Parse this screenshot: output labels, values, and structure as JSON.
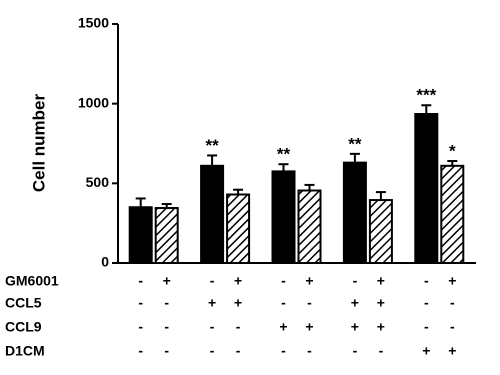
{
  "chart_data": {
    "type": "bar",
    "y_label": "Cell number",
    "ylim": [
      0,
      1500
    ],
    "yticks": [
      0,
      500,
      1000,
      1500
    ],
    "series": [
      {
        "color": "#000000",
        "hatch": false,
        "values": [
          350,
          610,
          575,
          630,
          935
        ],
        "errors": [
          55,
          65,
          45,
          55,
          55
        ],
        "annotations": [
          null,
          "**",
          "**",
          "**",
          "***"
        ]
      },
      {
        "color": "#000000",
        "hatch": true,
        "values": [
          345,
          430,
          455,
          395,
          610
        ],
        "errors": [
          25,
          30,
          35,
          50,
          30
        ],
        "annotations": [
          null,
          null,
          null,
          null,
          "*"
        ]
      }
    ],
    "conditions": [
      {
        "label": "GM6001",
        "signs": [
          "-",
          "+",
          "-",
          "+",
          "-",
          "+",
          "-",
          "+",
          "-",
          "+"
        ]
      },
      {
        "label": "CCL5",
        "signs": [
          "-",
          "-",
          "+",
          "+",
          "-",
          "-",
          "+",
          "+",
          "-",
          "-"
        ]
      },
      {
        "label": "CCL9",
        "signs": [
          "-",
          "-",
          "-",
          "-",
          "+",
          "+",
          "+",
          "+",
          "-",
          "-"
        ]
      },
      {
        "label": "D1CM",
        "signs": [
          "-",
          "-",
          "-",
          "-",
          "-",
          "-",
          "-",
          "-",
          "+",
          "+"
        ]
      }
    ]
  }
}
